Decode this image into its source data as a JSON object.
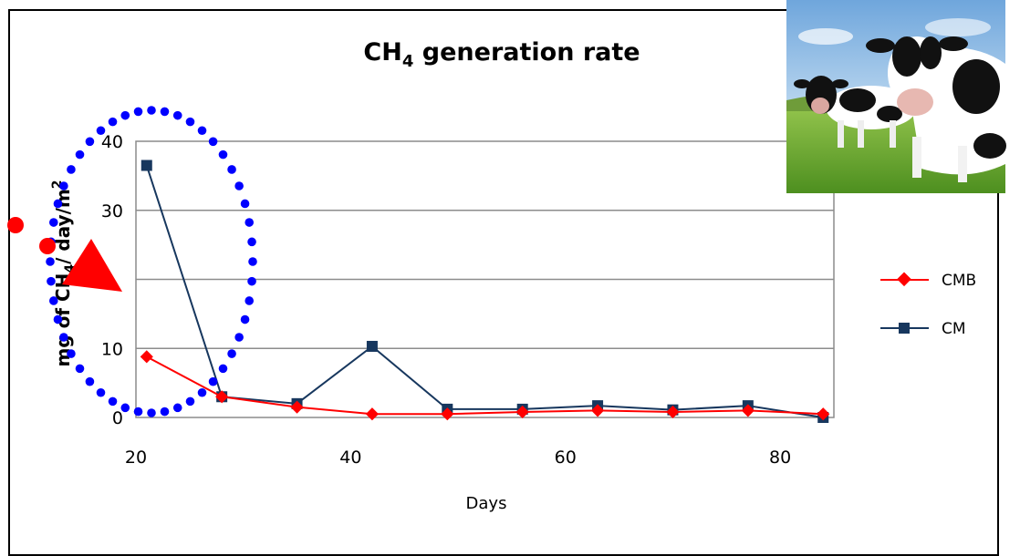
{
  "chart_data": {
    "type": "line",
    "title": "CH4 generation rate",
    "title_main": "CH",
    "title_sub": "4",
    "title_rest": " generation rate",
    "xlabel": "Days",
    "ylabel_parts": [
      "mg of CH",
      "4",
      "/ day/m",
      "2"
    ],
    "xlim": [
      20,
      85
    ],
    "ylim": [
      0,
      40
    ],
    "x_ticks": [
      20,
      40,
      60,
      80
    ],
    "y_ticks": [
      0,
      10,
      30,
      40
    ],
    "grid": true,
    "legend_position": "right",
    "series": [
      {
        "name": "CMB",
        "color": "#ff0000",
        "marker": "diamond",
        "x": [
          21,
          28,
          35,
          42,
          49,
          56,
          63,
          70,
          77,
          84
        ],
        "y": [
          8.8,
          3.0,
          1.5,
          0.5,
          0.5,
          0.8,
          1.0,
          0.8,
          1.0,
          0.5
        ]
      },
      {
        "name": "CM",
        "color": "#17375e",
        "marker": "square",
        "x": [
          21,
          28,
          35,
          42,
          49,
          56,
          63,
          70,
          77,
          84
        ],
        "y": [
          36.5,
          3.0,
          2.0,
          10.3,
          1.2,
          1.2,
          1.7,
          1.1,
          1.7,
          0.0
        ]
      }
    ]
  },
  "annotations": {
    "ellipse_color": "#0000ff",
    "marker_color": "#ff0000"
  },
  "photo": {
    "icon": "cows-in-field-photo"
  }
}
